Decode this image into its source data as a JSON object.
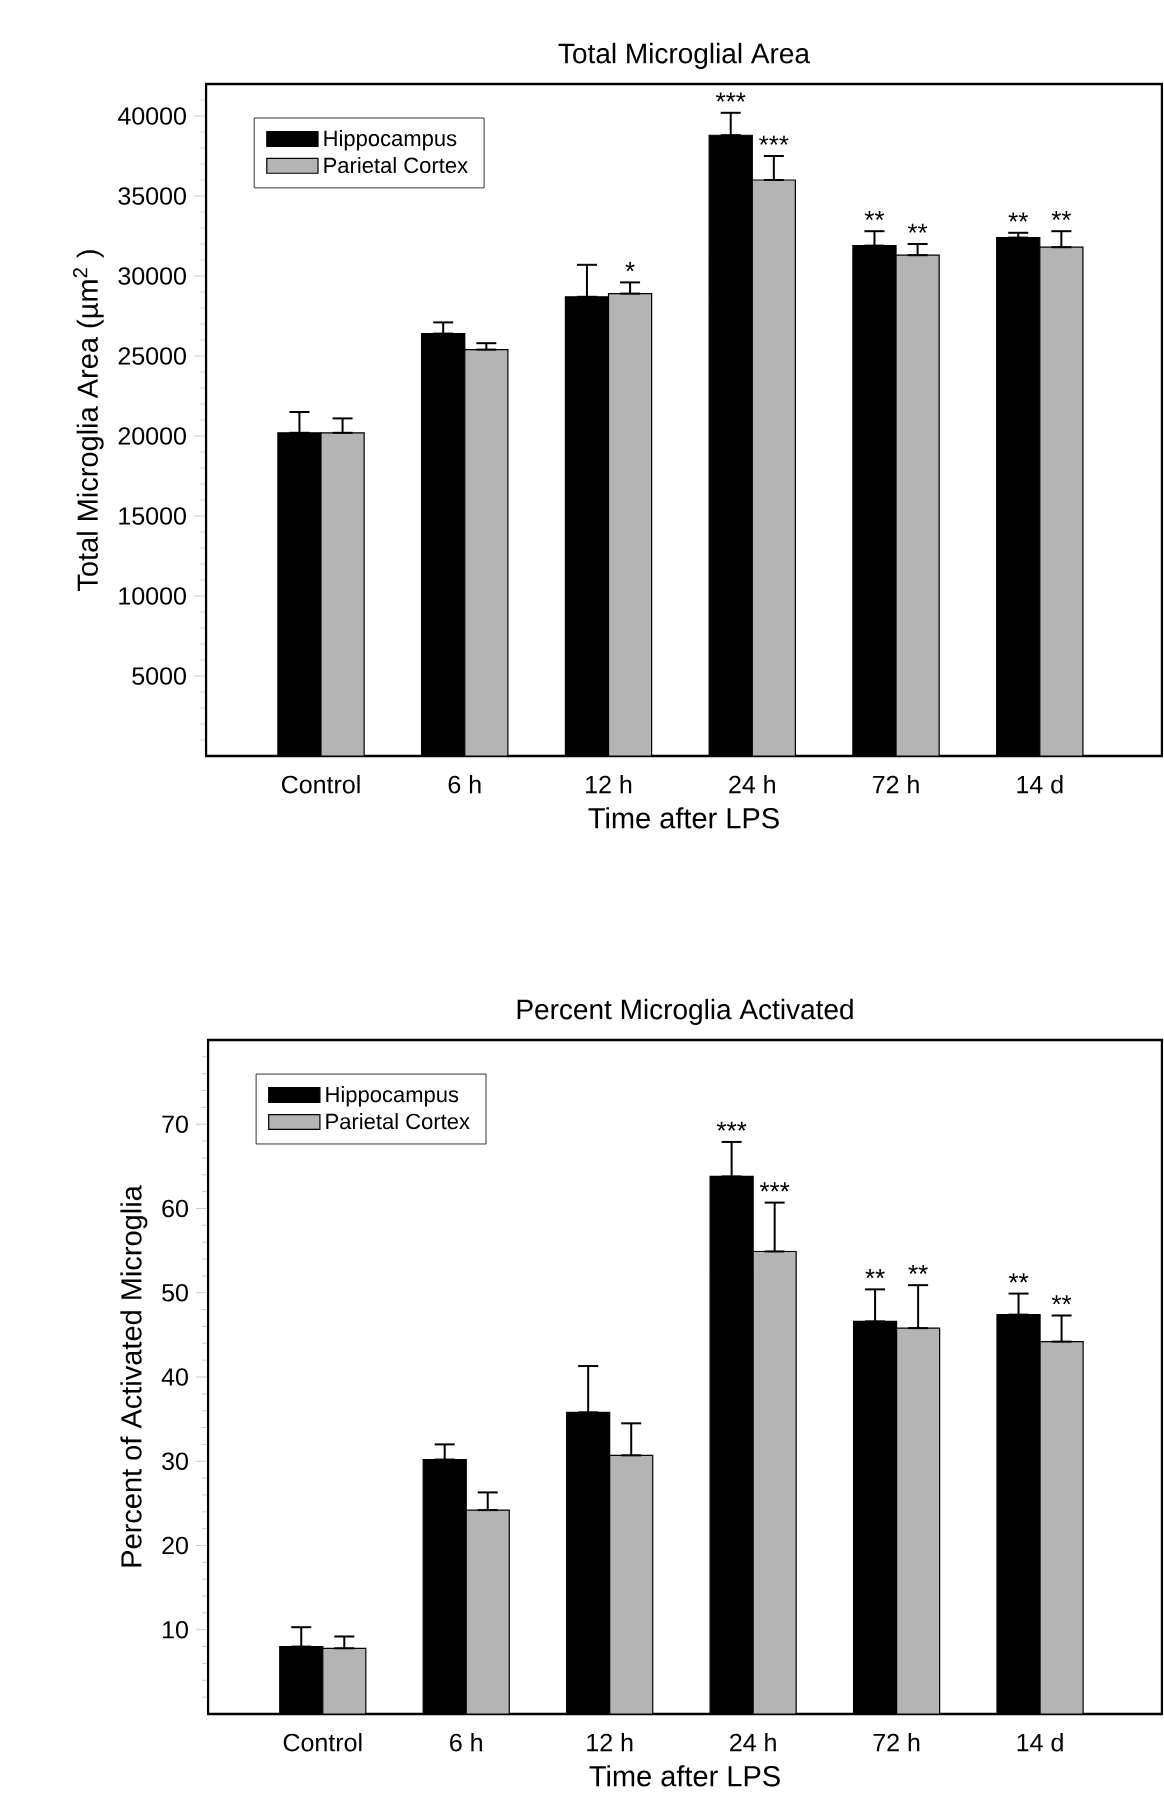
{
  "chart_data": [
    {
      "type": "bar",
      "title": "Total Microglial Area",
      "xlabel": "Time after LPS",
      "ylabel": "Total Microglia Area (µm$^{2}$ )",
      "legend": "top left",
      "categories": [
        "Control",
        "6 h",
        "12 h",
        "24 h",
        "72 h",
        "14 d"
      ],
      "series": [
        {
          "name": "Hippocampus",
          "color": "#000000",
          "values": [
            20200,
            26400,
            28700,
            38800,
            31900,
            32400
          ],
          "errors": [
            [
              20200,
              21500
            ],
            [
              26400,
              27100
            ],
            [
              28700,
              30700
            ],
            [
              38800,
              40200
            ],
            [
              31900,
              32800
            ],
            [
              32400,
              32700
            ]
          ],
          "value_labels": [
            null,
            null,
            null,
            "***",
            "**",
            "**"
          ]
        },
        {
          "name": "Parietal Cortex",
          "color": "#b4b4b4",
          "values": [
            20200,
            25400,
            28900,
            36000,
            31300,
            31800
          ],
          "errors": [
            [
              20200,
              21100
            ],
            [
              25400,
              25800
            ],
            [
              28900,
              29600
            ],
            [
              36000,
              37500
            ],
            [
              31300,
              32000
            ],
            [
              31800,
              32800
            ]
          ],
          "value_labels": [
            null,
            null,
            "*",
            "***",
            "**",
            "**"
          ]
        }
      ],
      "ylim": [
        0,
        42000
      ],
      "yticks": [
        {
          "value": 1000,
          "label": null
        },
        {
          "value": 2000,
          "label": null
        },
        {
          "value": 3000,
          "label": null
        },
        {
          "value": 4000,
          "label": null
        },
        5000,
        {
          "value": 6000,
          "label": null
        },
        {
          "value": 7000,
          "label": null
        },
        {
          "value": 8000,
          "label": null
        },
        {
          "value": 9000,
          "label": null
        },
        10000,
        {
          "value": 11000,
          "label": null
        },
        {
          "value": 12000,
          "label": null
        },
        {
          "value": 13000,
          "label": null
        },
        {
          "value": 14000,
          "label": null
        },
        15000,
        {
          "value": 16000,
          "label": null
        },
        {
          "value": 17000,
          "label": null
        },
        {
          "value": 18000,
          "label": null
        },
        {
          "value": 19000,
          "label": null
        },
        20000,
        {
          "value": 21000,
          "label": null
        },
        {
          "value": 22000,
          "label": null
        },
        {
          "value": 23000,
          "label": null
        },
        {
          "value": 24000,
          "label": null
        },
        25000,
        {
          "value": 26000,
          "label": null
        },
        {
          "value": 27000,
          "label": null
        },
        {
          "value": 28000,
          "label": null
        },
        {
          "value": 29000,
          "label": null
        },
        30000,
        {
          "value": 31000,
          "label": null
        },
        {
          "value": 32000,
          "label": null
        },
        {
          "value": 33000,
          "label": null
        },
        {
          "value": 34000,
          "label": null
        },
        35000,
        {
          "value": 36000,
          "label": null
        },
        {
          "value": 37000,
          "label": null
        },
        {
          "value": 38000,
          "label": null
        },
        {
          "value": 39000,
          "label": null
        },
        40000,
        {
          "value": 41000,
          "label": null
        }
      ]
    },
    {
      "type": "bar",
      "title": "Percent Microglia Activated",
      "xlabel": "Time after LPS",
      "ylabel": "Percent of Activated Microglia",
      "legend": "top left",
      "categories": [
        "Control",
        "6 h",
        "12 h",
        "24 h",
        "72 h",
        "14 d"
      ],
      "series": [
        {
          "name": "Hippocampus",
          "color": "#000000",
          "values": [
            8.0,
            30.2,
            35.8,
            63.8,
            46.6,
            47.4
          ],
          "errors": [
            [
              8.0,
              10.3
            ],
            [
              30.2,
              32.0
            ],
            [
              35.8,
              41.3
            ],
            [
              63.8,
              67.9
            ],
            [
              46.6,
              50.4
            ],
            [
              47.4,
              49.9
            ]
          ],
          "value_labels": [
            null,
            null,
            null,
            "***",
            "**",
            "**"
          ]
        },
        {
          "name": "Parietal Cortex",
          "color": "#b4b4b4",
          "values": [
            7.8,
            24.2,
            30.7,
            54.9,
            45.8,
            44.2
          ],
          "errors": [
            [
              7.8,
              9.2
            ],
            [
              24.2,
              26.3
            ],
            [
              30.7,
              34.5
            ],
            [
              54.9,
              60.7
            ],
            [
              45.8,
              50.9
            ],
            [
              44.2,
              47.3
            ]
          ],
          "value_labels": [
            null,
            null,
            null,
            "***",
            "**",
            "**"
          ]
        }
      ],
      "ylim": [
        0,
        80
      ],
      "yticks": [
        {
          "value": 2,
          "label": null
        },
        {
          "value": 4,
          "label": null
        },
        {
          "value": 6,
          "label": null
        },
        {
          "value": 8,
          "label": null
        },
        10,
        {
          "value": 12,
          "label": null
        },
        {
          "value": 14,
          "label": null
        },
        {
          "value": 16,
          "label": null
        },
        {
          "value": 18,
          "label": null
        },
        20,
        {
          "value": 22,
          "label": null
        },
        {
          "value": 24,
          "label": null
        },
        {
          "value": 26,
          "label": null
        },
        {
          "value": 28,
          "label": null
        },
        30,
        {
          "value": 32,
          "label": null
        },
        {
          "value": 34,
          "label": null
        },
        {
          "value": 36,
          "label": null
        },
        {
          "value": 38,
          "label": null
        },
        40,
        {
          "value": 42,
          "label": null
        },
        {
          "value": 44,
          "label": null
        },
        {
          "value": 46,
          "label": null
        },
        {
          "value": 48,
          "label": null
        },
        50,
        {
          "value": 52,
          "label": null
        },
        {
          "value": 54,
          "label": null
        },
        {
          "value": 56,
          "label": null
        },
        {
          "value": 58,
          "label": null
        },
        60,
        {
          "value": 62,
          "label": null
        },
        {
          "value": 64,
          "label": null
        },
        {
          "value": 66,
          "label": null
        },
        {
          "value": 68,
          "label": null
        },
        70,
        {
          "value": 72,
          "label": null
        },
        {
          "value": 74,
          "label": null
        },
        {
          "value": 76,
          "label": null
        },
        {
          "value": 78,
          "label": null
        }
      ]
    }
  ]
}
